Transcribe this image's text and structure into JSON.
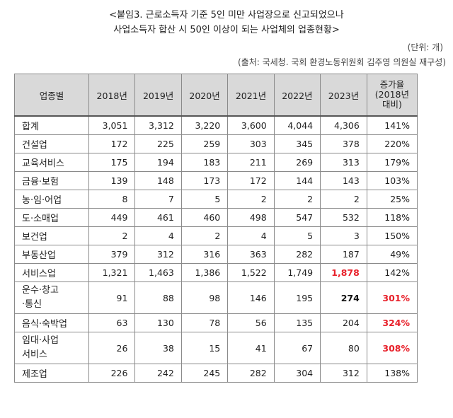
{
  "title_line1": "<붙임3. 근로소득자 기준 5인 미만 사업장으로 신고되었으나",
  "title_line2": "사업소득자 합산 시 50인 이상이 되는 사업체의 업종현황>",
  "unit": "(단위: 개)",
  "source": "(출처: 국세청. 국회 환경노동위원회 김주영 의원실 재구성)",
  "header": {
    "category": "업종별",
    "years": [
      "2018년",
      "2019년",
      "2020년",
      "2021년",
      "2022년",
      "2023년"
    ],
    "rate_line1": "증가율",
    "rate_line2": "(2018년",
    "rate_line3": "대비)"
  },
  "rows": [
    {
      "cat": "합계",
      "values": [
        "3,051",
        "3,312",
        "3,220",
        "3,600",
        "4,044",
        "4,306"
      ],
      "rate": "141%"
    },
    {
      "cat": "건설업",
      "values": [
        "172",
        "225",
        "259",
        "303",
        "345",
        "378"
      ],
      "rate": "220%"
    },
    {
      "cat": "교육서비스",
      "values": [
        "175",
        "194",
        "183",
        "211",
        "269",
        "313"
      ],
      "rate": "179%"
    },
    {
      "cat": "금융·보험",
      "values": [
        "139",
        "148",
        "173",
        "172",
        "144",
        "143"
      ],
      "rate": "103%"
    },
    {
      "cat": "농·임·어업",
      "values": [
        "8",
        "7",
        "5",
        "2",
        "2",
        "2"
      ],
      "rate": "25%"
    },
    {
      "cat": "도·소매업",
      "values": [
        "449",
        "461",
        "460",
        "498",
        "547",
        "532"
      ],
      "rate": "118%"
    },
    {
      "cat": "보건업",
      "values": [
        "2",
        "4",
        "2",
        "4",
        "5",
        "3"
      ],
      "rate": "150%"
    },
    {
      "cat": "부동산업",
      "values": [
        "379",
        "312",
        "316",
        "363",
        "282",
        "187"
      ],
      "rate": "49%"
    },
    {
      "cat": "서비스업",
      "values": [
        "1,321",
        "1,463",
        "1,386",
        "1,522",
        "1,749",
        "1,878"
      ],
      "rate": "142%"
    },
    {
      "cat_line1": "운수·창고",
      "cat_line2": "·통신",
      "values": [
        "91",
        "88",
        "98",
        "146",
        "195",
        "274"
      ],
      "rate": "301%"
    },
    {
      "cat": "음식·숙박업",
      "values": [
        "63",
        "130",
        "78",
        "56",
        "135",
        "204"
      ],
      "rate": "324%"
    },
    {
      "cat_line1": "임대·사업",
      "cat_line2": "서비스",
      "values": [
        "26",
        "38",
        "15",
        "41",
        "67",
        "80"
      ],
      "rate": "308%"
    },
    {
      "cat": "제조업",
      "values": [
        "226",
        "242",
        "245",
        "282",
        "304",
        "312"
      ],
      "rate": "138%"
    }
  ],
  "highlight_colors": {
    "red": "#e8202a"
  }
}
